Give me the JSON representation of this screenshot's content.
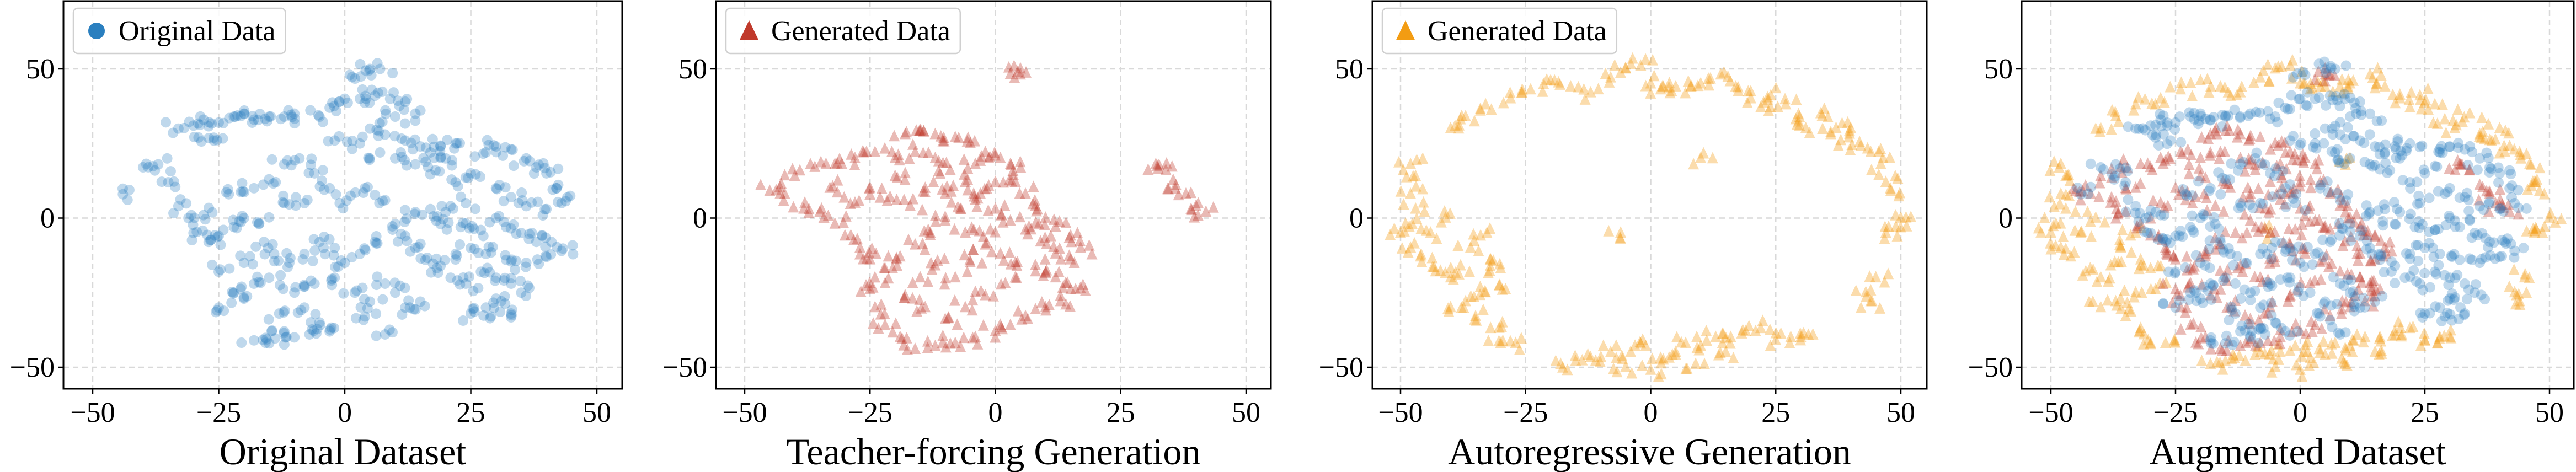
{
  "colors": {
    "original": "#2a7fbf",
    "teacher": "#c0392b",
    "autoregressive": "#f39c12"
  },
  "chart_data": [
    {
      "type": "scatter",
      "xlabel": "Original Dataset",
      "legend": [
        {
          "label": "Original Data",
          "series": "original",
          "marker": "circle"
        }
      ],
      "legend_position": "top-left",
      "series_shown": [
        "original"
      ],
      "xlim": [
        -56,
        55
      ],
      "ylim": [
        -57,
        73
      ],
      "xticks": [
        "−50",
        "−25",
        "0",
        "25",
        "50"
      ],
      "xtick_values": [
        -50,
        -25,
        0,
        25,
        50
      ],
      "yticks": [
        "50",
        "0",
        "−50"
      ],
      "ytick_values": [
        50,
        0,
        -50
      ],
      "grid": true
    },
    {
      "type": "scatter",
      "xlabel": "Teacher-forcing Generation",
      "legend": [
        {
          "label": "Generated Data",
          "series": "teacher",
          "marker": "triangle"
        }
      ],
      "legend_position": "top-left",
      "series_shown": [
        "teacher"
      ],
      "xlim": [
        -56,
        55
      ],
      "ylim": [
        -57,
        73
      ],
      "xticks": [
        "−50",
        "−25",
        "0",
        "25",
        "50"
      ],
      "xtick_values": [
        -50,
        -25,
        0,
        25,
        50
      ],
      "yticks": [
        "50",
        "0",
        "−50"
      ],
      "ytick_values": [
        50,
        0,
        -50
      ],
      "grid": true
    },
    {
      "type": "scatter",
      "xlabel": "Autoregressive Generation",
      "legend": [
        {
          "label": "Generated Data",
          "series": "autoregressive",
          "marker": "triangle"
        }
      ],
      "legend_position": "top-left",
      "series_shown": [
        "autoregressive"
      ],
      "xlim": [
        -56,
        55
      ],
      "ylim": [
        -57,
        73
      ],
      "xticks": [
        "−50",
        "−25",
        "0",
        "25",
        "50"
      ],
      "xtick_values": [
        -50,
        -25,
        0,
        25,
        50
      ],
      "yticks": [
        "50",
        "0",
        "−50"
      ],
      "ytick_values": [
        50,
        0,
        -50
      ],
      "grid": true
    },
    {
      "type": "scatter",
      "xlabel": "Augmented Dataset",
      "legend": [],
      "series_shown": [
        "autoregressive",
        "teacher",
        "original"
      ],
      "xlim": [
        -56,
        55
      ],
      "ylim": [
        -57,
        73
      ],
      "xticks": [
        "−50",
        "−25",
        "0",
        "25",
        "50"
      ],
      "xtick_values": [
        -50,
        -25,
        0,
        25,
        50
      ],
      "yticks": [
        "50",
        "0",
        "−50"
      ],
      "ytick_values": [
        50,
        0,
        -50
      ],
      "grid": true
    }
  ],
  "series": {
    "original": [
      [
        -33,
        30
      ],
      [
        -30,
        31
      ],
      [
        -28,
        33
      ],
      [
        -25,
        32
      ],
      [
        -22,
        34
      ],
      [
        -20,
        35
      ],
      [
        -18,
        33
      ],
      [
        -15,
        34
      ],
      [
        -12,
        34
      ],
      [
        -10,
        35
      ],
      [
        -29,
        27
      ],
      [
        -26,
        26
      ],
      [
        1,
        48
      ],
      [
        5,
        50
      ],
      [
        7,
        50
      ],
      [
        -5,
        34
      ],
      [
        -3,
        37
      ],
      [
        0,
        40
      ],
      [
        3,
        40
      ],
      [
        6,
        41
      ],
      [
        9,
        40
      ],
      [
        12,
        39
      ],
      [
        14,
        35
      ],
      [
        10,
        34
      ],
      [
        5,
        30
      ],
      [
        8,
        28
      ],
      [
        12,
        26
      ],
      [
        15,
        24
      ],
      [
        17,
        22
      ],
      [
        19,
        24
      ],
      [
        22,
        25
      ],
      [
        20,
        20
      ],
      [
        18,
        16
      ],
      [
        14,
        18
      ],
      [
        10,
        20
      ],
      [
        7,
        22
      ],
      [
        3,
        25
      ],
      [
        -2,
        26
      ],
      [
        28,
        22
      ],
      [
        30,
        24
      ],
      [
        33,
        23
      ],
      [
        36,
        20
      ],
      [
        38,
        17
      ],
      [
        40,
        15
      ],
      [
        42,
        10
      ],
      [
        43,
        5
      ],
      [
        40,
        3
      ],
      [
        36,
        4
      ],
      [
        33,
        7
      ],
      [
        30,
        10
      ],
      [
        25,
        15
      ],
      [
        22,
        12
      ],
      [
        24,
        5
      ],
      [
        20,
        2
      ],
      [
        17,
        3
      ],
      [
        19,
        -2
      ],
      [
        23,
        -3
      ],
      [
        27,
        -4
      ],
      [
        30,
        0
      ],
      [
        32,
        -3
      ],
      [
        35,
        -5
      ],
      [
        38,
        -8
      ],
      [
        41,
        -8
      ],
      [
        43,
        -11
      ],
      [
        40,
        -13
      ],
      [
        36,
        -15
      ],
      [
        32,
        -14
      ],
      [
        28,
        -12
      ],
      [
        25,
        -10
      ],
      [
        22,
        -12
      ],
      [
        19,
        -16
      ],
      [
        21,
        -20
      ],
      [
        24,
        -22
      ],
      [
        27,
        -18
      ],
      [
        30,
        -20
      ],
      [
        33,
        -22
      ],
      [
        35,
        -25
      ],
      [
        30,
        -27
      ],
      [
        28,
        -30
      ],
      [
        25,
        -32
      ],
      [
        29,
        -33
      ],
      [
        33,
        -32
      ],
      [
        14,
        -10
      ],
      [
        16,
        -14
      ],
      [
        12,
        -6
      ],
      [
        10,
        -2
      ],
      [
        14,
        2
      ],
      [
        8,
        6
      ],
      [
        4,
        10
      ],
      [
        -44,
        8
      ],
      [
        -40,
        17
      ],
      [
        -37,
        18
      ],
      [
        -35,
        12
      ],
      [
        -33,
        4
      ],
      [
        -31,
        0
      ],
      [
        -28,
        1
      ],
      [
        -30,
        -5
      ],
      [
        -27,
        -8
      ],
      [
        -25,
        -6
      ],
      [
        -22,
        -3
      ],
      [
        -20,
        0
      ],
      [
        -17,
        -2
      ],
      [
        -23,
        8
      ],
      [
        -18,
        10
      ],
      [
        -15,
        13
      ],
      [
        -12,
        18
      ],
      [
        -9,
        20
      ],
      [
        -6,
        15
      ],
      [
        -3,
        10
      ],
      [
        -1,
        5
      ],
      [
        -8,
        5
      ],
      [
        -12,
        5
      ],
      [
        -16,
        -8
      ],
      [
        -14,
        -12
      ],
      [
        -11,
        -15
      ],
      [
        -8,
        -12
      ],
      [
        -5,
        -8
      ],
      [
        -2,
        -10
      ],
      [
        0,
        -15
      ],
      [
        3,
        -12
      ],
      [
        6,
        -8
      ],
      [
        -20,
        -15
      ],
      [
        -25,
        -18
      ],
      [
        -22,
        -25
      ],
      [
        -18,
        -22
      ],
      [
        -15,
        -20
      ],
      [
        -10,
        -25
      ],
      [
        -6,
        -22
      ],
      [
        -2,
        -20
      ],
      [
        2,
        -25
      ],
      [
        5,
        -28
      ],
      [
        8,
        -22
      ],
      [
        -25,
        -30
      ],
      [
        -20,
        -27
      ],
      [
        -13,
        -32
      ],
      [
        -8,
        -30
      ],
      [
        -5,
        -35
      ],
      [
        -3,
        -38
      ],
      [
        4,
        -33
      ],
      [
        8,
        -39
      ],
      [
        -18,
        -41
      ],
      [
        -15,
        -42
      ],
      [
        -12,
        -38
      ],
      [
        -10,
        -40
      ],
      [
        -7,
        -39
      ],
      [
        12,
        -30
      ],
      [
        15,
        -28
      ],
      [
        10,
        -25
      ]
    ],
    "teacher": [
      [
        -18,
        28
      ],
      [
        -15,
        29
      ],
      [
        -12,
        28
      ],
      [
        -8,
        27
      ],
      [
        -5,
        25
      ],
      [
        -2,
        22
      ],
      [
        1,
        20
      ],
      [
        3,
        18
      ],
      [
        4,
        12
      ],
      [
        6,
        8
      ],
      [
        8,
        4
      ],
      [
        10,
        0
      ],
      [
        12,
        -3
      ],
      [
        15,
        -6
      ],
      [
        17,
        -10
      ],
      [
        15,
        -14
      ],
      [
        12,
        -12
      ],
      [
        9,
        -8
      ],
      [
        6,
        -4
      ],
      [
        3,
        -1
      ],
      [
        0,
        3
      ],
      [
        -3,
        8
      ],
      [
        -6,
        12
      ],
      [
        -9,
        16
      ],
      [
        -12,
        20
      ],
      [
        -16,
        22
      ],
      [
        -20,
        20
      ],
      [
        -24,
        22
      ],
      [
        -28,
        20
      ],
      [
        -32,
        18
      ],
      [
        -36,
        17
      ],
      [
        -40,
        14
      ],
      [
        -42,
        8
      ],
      [
        -38,
        5
      ],
      [
        -35,
        2
      ],
      [
        -32,
        -2
      ],
      [
        -30,
        -6
      ],
      [
        -27,
        -10
      ],
      [
        -25,
        -14
      ],
      [
        -22,
        -17
      ],
      [
        -19,
        -13
      ],
      [
        -16,
        -9
      ],
      [
        -13,
        -5
      ],
      [
        -10,
        -1
      ],
      [
        -7,
        3
      ],
      [
        -4,
        6
      ],
      [
        -25,
        10
      ],
      [
        -21,
        7
      ],
      [
        -17,
        4
      ],
      [
        -14,
        10
      ],
      [
        -10,
        8
      ],
      [
        -28,
        5
      ],
      [
        -33,
        10
      ],
      [
        -20,
        14
      ],
      [
        -6,
        -5
      ],
      [
        -2,
        -9
      ],
      [
        1,
        -12
      ],
      [
        4,
        -15
      ],
      [
        8,
        -18
      ],
      [
        12,
        -20
      ],
      [
        14,
        -22
      ],
      [
        16,
        -24
      ],
      [
        13,
        -28
      ],
      [
        10,
        -30
      ],
      [
        6,
        -33
      ],
      [
        3,
        -36
      ],
      [
        0,
        -38
      ],
      [
        -4,
        -40
      ],
      [
        -8,
        -42
      ],
      [
        -12,
        -43
      ],
      [
        -16,
        -44
      ],
      [
        -19,
        -40
      ],
      [
        -22,
        -36
      ],
      [
        -24,
        -30
      ],
      [
        -25,
        -24
      ],
      [
        -22,
        -22
      ],
      [
        -18,
        -26
      ],
      [
        -14,
        -30
      ],
      [
        -10,
        -34
      ],
      [
        -6,
        -30
      ],
      [
        -2,
        -26
      ],
      [
        2,
        -22
      ],
      [
        -8,
        -20
      ],
      [
        -12,
        -16
      ],
      [
        -15,
        -20
      ],
      [
        -5,
        -15
      ],
      [
        -1,
        -4
      ],
      [
        -4,
        18
      ],
      [
        0,
        12
      ],
      [
        5,
        48
      ],
      [
        5,
        50
      ],
      [
        32,
        18
      ],
      [
        34,
        16
      ],
      [
        36,
        11
      ],
      [
        38,
        8
      ],
      [
        40,
        4
      ],
      [
        42,
        2
      ],
      [
        -45,
        9
      ]
    ],
    "autoregressive": [
      [
        -40,
        30
      ],
      [
        -37,
        34
      ],
      [
        -33,
        38
      ],
      [
        -28,
        40
      ],
      [
        -24,
        43
      ],
      [
        -20,
        46
      ],
      [
        -16,
        44
      ],
      [
        -12,
        42
      ],
      [
        -8,
        47
      ],
      [
        -5,
        50
      ],
      [
        -2,
        51
      ],
      [
        0,
        45
      ],
      [
        2,
        43
      ],
      [
        5,
        44
      ],
      [
        8,
        44
      ],
      [
        10,
        45
      ],
      [
        14,
        48
      ],
      [
        17,
        44
      ],
      [
        20,
        40
      ],
      [
        22,
        37
      ],
      [
        24,
        41
      ],
      [
        27,
        38
      ],
      [
        29,
        33
      ],
      [
        31,
        30
      ],
      [
        34,
        35
      ],
      [
        36,
        28
      ],
      [
        38,
        26
      ],
      [
        40,
        30
      ],
      [
        42,
        24
      ],
      [
        44,
        22
      ],
      [
        46,
        18
      ],
      [
        47,
        12
      ],
      [
        48,
        9
      ],
      [
        50,
        0
      ],
      [
        49,
        -3
      ],
      [
        47,
        -5
      ],
      [
        44,
        -28
      ],
      [
        43,
        -25
      ],
      [
        45,
        -20
      ],
      [
        -48,
        18
      ],
      [
        -47,
        14
      ],
      [
        -48,
        8
      ],
      [
        -47,
        3
      ],
      [
        -49,
        -2
      ],
      [
        -50,
        -5
      ],
      [
        -48,
        -10
      ],
      [
        -46,
        -13
      ],
      [
        -44,
        -5
      ],
      [
        -41,
        0
      ],
      [
        -43,
        -18
      ],
      [
        -40,
        -20
      ],
      [
        -38,
        -16
      ],
      [
        -36,
        -10
      ],
      [
        -34,
        -6
      ],
      [
        -32,
        -14
      ],
      [
        -30,
        -17
      ],
      [
        -29,
        -24
      ],
      [
        -33,
        -25
      ],
      [
        -37,
        -28
      ],
      [
        -40,
        -30
      ],
      [
        -35,
        -33
      ],
      [
        -32,
        -37
      ],
      [
        -30,
        -42
      ],
      [
        -27,
        -42
      ],
      [
        -18,
        -49
      ],
      [
        -15,
        -48
      ],
      [
        -11,
        -48
      ],
      [
        -8,
        -45
      ],
      [
        -4,
        -45
      ],
      [
        -1,
        -43
      ],
      [
        0,
        -51
      ],
      [
        2,
        -47
      ],
      [
        5,
        -46
      ],
      [
        7,
        -42
      ],
      [
        10,
        -43
      ],
      [
        13,
        -40
      ],
      [
        16,
        -40
      ],
      [
        19,
        -38
      ],
      [
        22,
        -37
      ],
      [
        25,
        -41
      ],
      [
        28,
        -40
      ],
      [
        30,
        -40
      ],
      [
        15,
        -45
      ],
      [
        9,
        -49
      ],
      [
        -5,
        -50
      ],
      [
        10,
        20
      ],
      [
        -6,
        -5
      ]
    ]
  }
}
